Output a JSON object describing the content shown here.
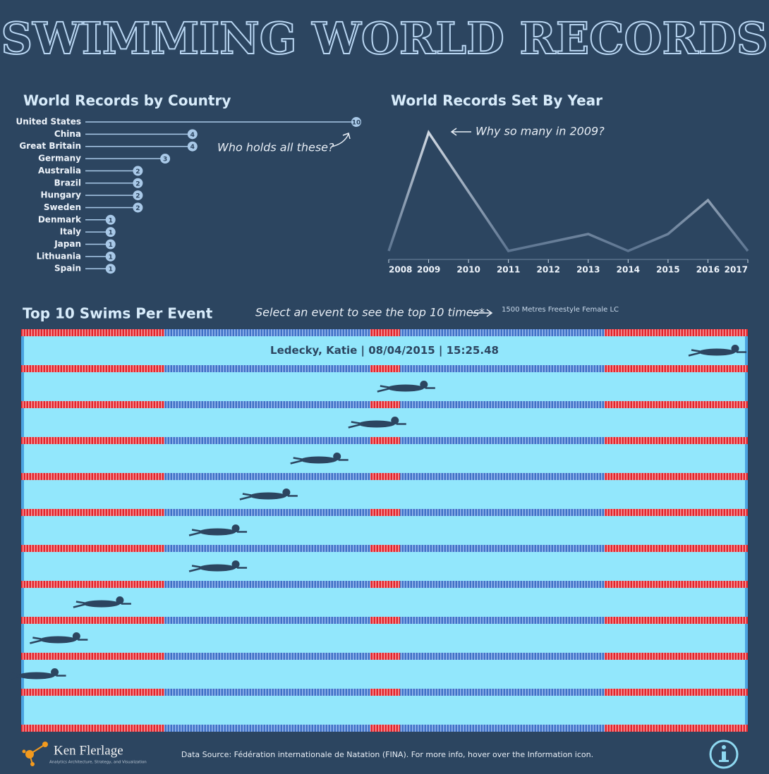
{
  "header": {
    "title": "SWIMMING WORLD RECORDS"
  },
  "chart_data": [
    {
      "type": "lollipop",
      "title": "World Records by Country",
      "categories": [
        "United States",
        "China",
        "Great Britain",
        "Germany",
        "Australia",
        "Brazil",
        "Hungary",
        "Sweden",
        "Denmark",
        "Italy",
        "Japan",
        "Lithuania",
        "Spain"
      ],
      "values": [
        10,
        4,
        4,
        3,
        2,
        2,
        2,
        2,
        1,
        1,
        1,
        1,
        1
      ],
      "xlim": [
        0,
        10
      ],
      "color": "#a9c9e8",
      "annotation": "Who holds all these?"
    },
    {
      "type": "line",
      "title": "World Records Set By Year",
      "x": [
        2008,
        2009,
        2010,
        2011,
        2012,
        2013,
        2014,
        2015,
        2016,
        2017
      ],
      "values": [
        0,
        14,
        7,
        0,
        1,
        2,
        0,
        2,
        6,
        0
      ],
      "color": "#9fb3c8",
      "annotation": "Why so many in 2009?"
    },
    {
      "type": "swim",
      "title": "Top 10 Swims Per Event",
      "annotation": "Select an event to see the top 10 times*",
      "event": "1500 Metres Freestyle Female LC",
      "highlight": "Ledecky, Katie | 08/04/2015 | 15:25.48",
      "values": [
        100,
        57,
        53,
        45,
        38,
        31,
        31,
        15,
        9,
        6
      ],
      "xlim": [
        0,
        100
      ],
      "color": "#2c4560"
    }
  ],
  "footer": {
    "brand": "Ken Flerlage",
    "tagline": "Analytics Architecture, Strategy, and Visualization",
    "source": "Data Source: Fédération internationale de Natation (FINA). For more info, hover over the Information icon."
  }
}
